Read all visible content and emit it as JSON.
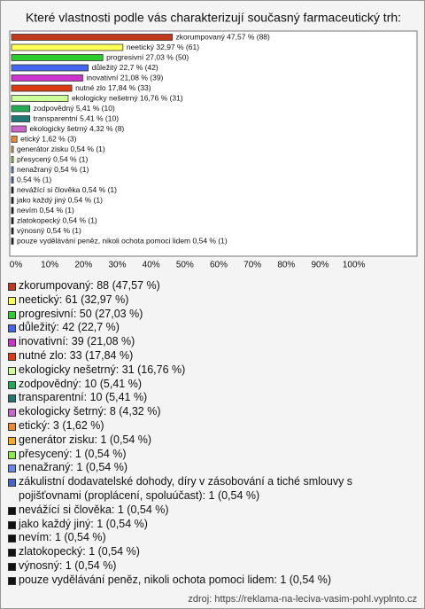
{
  "chart_data": {
    "type": "bar",
    "orientation": "horizontal",
    "title": "Které vlastnosti podle vás charakterizují současný farmaceutický trh:",
    "categories": [
      "zkorumpovaný: 88 (47,57 %)",
      "neetický: 61 (32,97 %)",
      "progresivní: 50 (27,03 %)",
      "důležitý: 42 (22,7 %)",
      "inovativní: 39 (21,08 %)",
      "nutné zlo: 33 (17,84 %)",
      "ekologicky nešetrný: 31 (16,76 %)",
      "zodpovědný: 10 (5,41 %)",
      "transparentní: 10 (5,41 %)",
      "ekologicky šetrný: 8 (4,32 %)",
      "etický: 3 (1,62 %)",
      "generátor zisku: 1 (0,54 %)",
      "přesycený: 1 (0,54 %)",
      "nenažraný: 1 (0,54 %)",
      "zákulistní dodavatelské dohody, díry v zásobování a tiché smlouvy s pojišťovnami (proplácení, spoluúčast): 1 (0,54 %)",
      "nevážící si člověka: 1 (0,54 %)",
      "jako každý jiný: 1 (0,54 %)",
      "nevím: 1 (0,54 %)",
      "zlatokopecký: 1 (0,54 %)",
      "výnosný: 1 (0,54 %)",
      "pouze vydělávání peněz, nikoli ochota pomoci lidem: 1 (0,54 %)"
    ],
    "values": [
      47.57,
      32.97,
      27.03,
      22.7,
      21.08,
      17.84,
      16.76,
      5.41,
      5.41,
      4.32,
      1.62,
      0.54,
      0.54,
      0.54,
      0.54,
      0.54,
      0.54,
      0.54,
      0.54,
      0.54,
      0.54
    ],
    "value_labels": [
      "zkorumpovaný 47,57 % (88)",
      "neetický 32,97 % (61)",
      "progresivní 27,03 % (50)",
      "důležitý 22,7 % (42)",
      "inovativní 21,08 % (39)",
      "nutné zlo 17,84 % (33)",
      "ekologicky nešetrný 16,76 % (31)",
      "zodpovědný 5,41 % (10)",
      "transparentní 5,41 % (10)",
      "ekologicky šetrný 4,32 % (8)",
      "etický 1,62 % (3)",
      "generátor zisku 0,54 % (1)",
      "přesycený 0,54 % (1)",
      "nenažraný 0,54 % (1)",
      "0,54 % (1)",
      "nevážící si člověka 0,54 % (1)",
      "jako každý jiný 0,54 % (1)",
      "nevím 0,54 % (1)",
      "zlatokopecký 0,54 % (1)",
      "výnosný 0,54 % (1)",
      "pouze vydělávání peněz, nikoli ochota pomoci lidem 0,54 % (1)"
    ],
    "colors": [
      "#c0391c",
      "#ffff55",
      "#2fcc2f",
      "#4466ee",
      "#cc33cc",
      "#dd3a12",
      "#ccff99",
      "#22aa55",
      "#227777",
      "#cc66cc",
      "#ee8833",
      "#ffaa22",
      "#88ee44",
      "#6688ee",
      "#4466cc",
      "#111111",
      "#111111",
      "#111111",
      "#111111",
      "#111111",
      "#111111"
    ],
    "xlim": [
      0,
      120
    ],
    "xticks": [
      {
        "value": 0,
        "label": "0%"
      },
      {
        "value": 10,
        "label": "10%"
      },
      {
        "value": 20,
        "label": "20%"
      },
      {
        "value": 30,
        "label": "30%"
      },
      {
        "value": 40,
        "label": "40%"
      },
      {
        "value": 50,
        "label": "50%"
      },
      {
        "value": 60,
        "label": "60%"
      },
      {
        "value": 70,
        "label": "70%"
      },
      {
        "value": 80,
        "label": "80%"
      },
      {
        "value": 90,
        "label": "90%"
      },
      {
        "value": 100,
        "label": "100%"
      }
    ],
    "source": "zdroj: https://reklama-na-leciva-vasim-pohl.vyplnto.cz"
  }
}
